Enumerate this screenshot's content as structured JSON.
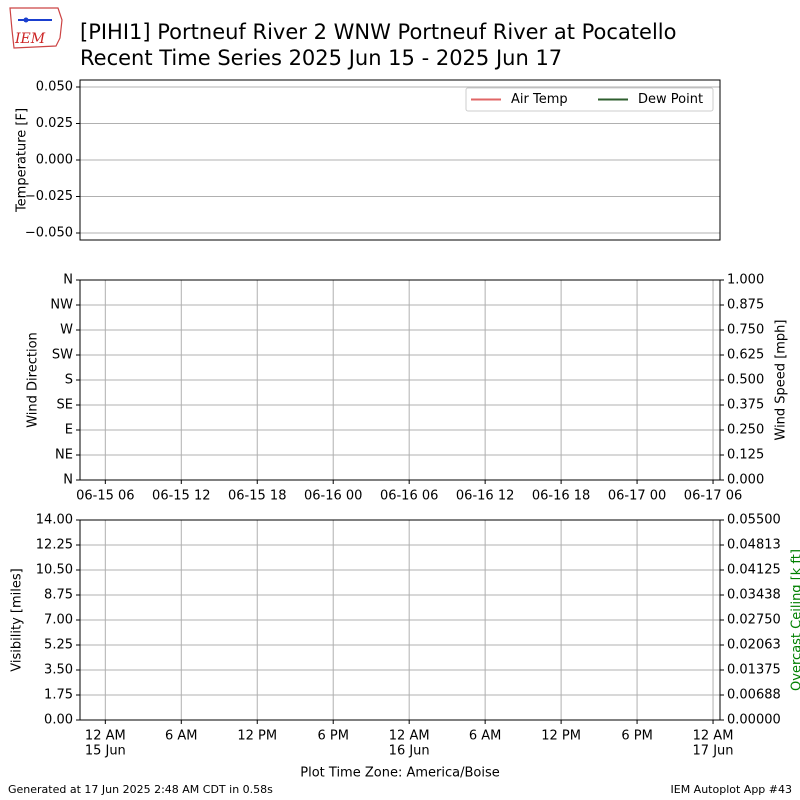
{
  "header": {
    "logo": "IEM",
    "title": "[PIHI1] Portneuf River 2 WNW Portneuf River at Pocatello",
    "subtitle": "Recent Time Series 2025 Jun 15 - 2025 Jun 17"
  },
  "chart_data": [
    {
      "type": "line",
      "ylabel": "Temperature [F]",
      "ylim": [
        -0.0548,
        0.0548
      ],
      "yticks": [
        {
          "value": -0.05,
          "label": "−0.050"
        },
        {
          "value": -0.025,
          "label": "−0.025"
        },
        {
          "value": 0,
          "label": "0.000"
        },
        {
          "value": 0.025,
          "label": "0.025"
        },
        {
          "value": 0.05,
          "label": "0.050"
        }
      ],
      "x": [],
      "series": [
        {
          "name": "Air Temp",
          "color": "#e06666",
          "values": []
        },
        {
          "name": "Dew Point",
          "color": "#2e5e2e",
          "values": []
        }
      ],
      "legend": "upper right",
      "grid": "y"
    },
    {
      "type": "line",
      "ylabel": "Wind Direction",
      "y2label": "Wind Speed [mph]",
      "xlim": [
        4,
        54.55
      ],
      "xticks": [
        {
          "value": 6,
          "label": [
            "06-15 06"
          ]
        },
        {
          "value": 12,
          "label": [
            "06-15 12"
          ]
        },
        {
          "value": 18,
          "label": [
            "06-15 18"
          ]
        },
        {
          "value": 24,
          "label": [
            "06-16 00"
          ]
        },
        {
          "value": 30,
          "label": [
            "06-16 06"
          ]
        },
        {
          "value": 36,
          "label": [
            "06-16 12"
          ]
        },
        {
          "value": 42,
          "label": [
            "06-16 18"
          ]
        },
        {
          "value": 48,
          "label": [
            "06-17 00"
          ]
        },
        {
          "value": 54,
          "label": [
            "06-17 06"
          ]
        }
      ],
      "ylim": [
        0,
        360
      ],
      "yticks": [
        {
          "value": 0,
          "label": "N"
        },
        {
          "value": 45,
          "label": "NE"
        },
        {
          "value": 90,
          "label": "E"
        },
        {
          "value": 135,
          "label": "SE"
        },
        {
          "value": 180,
          "label": "S"
        },
        {
          "value": 225,
          "label": "SW"
        },
        {
          "value": 270,
          "label": "W"
        },
        {
          "value": 315,
          "label": "NW"
        },
        {
          "value": 360,
          "label": "N"
        }
      ],
      "y2lim": [
        0,
        1
      ],
      "y2ticks": [
        {
          "value": 0,
          "label": "0.000"
        },
        {
          "value": 0.125,
          "label": "0.125"
        },
        {
          "value": 0.25,
          "label": "0.250"
        },
        {
          "value": 0.375,
          "label": "0.375"
        },
        {
          "value": 0.5,
          "label": "0.500"
        },
        {
          "value": 0.625,
          "label": "0.625"
        },
        {
          "value": 0.75,
          "label": "0.750"
        },
        {
          "value": 0.875,
          "label": "0.875"
        },
        {
          "value": 1,
          "label": "1.000"
        }
      ],
      "grid": "both"
    },
    {
      "type": "line",
      "ylabel": "Visibility [miles]",
      "y2label": "Overcast Ceiling [k ft]",
      "y2label_color": "#008000",
      "xlabel": "Plot Time Zone: America/Boise",
      "xlim": [
        -2,
        48.55
      ],
      "xticks": [
        {
          "value": 0,
          "label": [
            "12 AM",
            "15 Jun"
          ]
        },
        {
          "value": 6,
          "label": [
            "6 AM"
          ]
        },
        {
          "value": 12,
          "label": [
            "12 PM"
          ]
        },
        {
          "value": 18,
          "label": [
            "6 PM"
          ]
        },
        {
          "value": 24,
          "label": [
            "12 AM",
            "16 Jun"
          ]
        },
        {
          "value": 30,
          "label": [
            "6 AM"
          ]
        },
        {
          "value": 36,
          "label": [
            "12 PM"
          ]
        },
        {
          "value": 42,
          "label": [
            "6 PM"
          ]
        },
        {
          "value": 48,
          "label": [
            "12 AM",
            "17 Jun"
          ]
        }
      ],
      "ylim": [
        0,
        14
      ],
      "yticks": [
        {
          "value": 0,
          "label": "0.00"
        },
        {
          "value": 1.75,
          "label": "1.75"
        },
        {
          "value": 3.5,
          "label": "3.50"
        },
        {
          "value": 5.25,
          "label": "5.25"
        },
        {
          "value": 7,
          "label": "7.00"
        },
        {
          "value": 8.75,
          "label": "8.75"
        },
        {
          "value": 10.5,
          "label": "10.50"
        },
        {
          "value": 12.25,
          "label": "12.25"
        },
        {
          "value": 14,
          "label": "14.00"
        }
      ],
      "y2lim": [
        0,
        0.055
      ],
      "y2ticks": [
        {
          "value": 0,
          "label": "0.00000"
        },
        {
          "value": 0.006875,
          "label": "0.00688"
        },
        {
          "value": 0.01375,
          "label": "0.01375"
        },
        {
          "value": 0.020625,
          "label": "0.02063"
        },
        {
          "value": 0.0275,
          "label": "0.02750"
        },
        {
          "value": 0.034375,
          "label": "0.03438"
        },
        {
          "value": 0.04125,
          "label": "0.04125"
        },
        {
          "value": 0.048125,
          "label": "0.04813"
        },
        {
          "value": 0.055,
          "label": "0.05500"
        }
      ],
      "grid": "both"
    }
  ],
  "footer": {
    "left": "Generated at 17 Jun 2025 2:48 AM CDT in 0.58s",
    "right": "IEM Autoplot App #43"
  }
}
